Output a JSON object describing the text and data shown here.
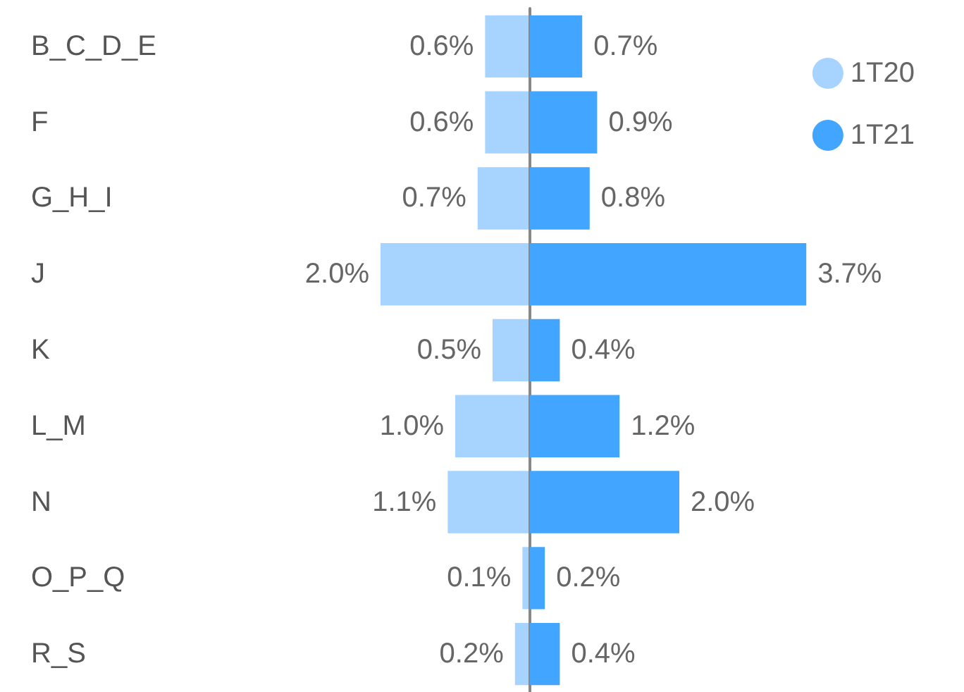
{
  "chart_data": [
    {
      "type": "bar",
      "orientation": "horizontal",
      "legend": "top right",
      "grid": false,
      "tick_labels": "y",
      "xlim": [
        2.0,
        0
      ],
      "categories": [
        "B_C_D_E",
        "F",
        "G_H_I",
        "J",
        "K",
        "L_M",
        "N",
        "O_P_Q",
        "R_S"
      ],
      "series": [
        {
          "name": "1T20",
          "color": "#a6d3ff",
          "values": [
            0.6,
            0.6,
            0.7,
            2.0,
            0.5,
            1.0,
            1.1,
            0.1,
            0.2
          ],
          "value_labels": [
            "0.6%",
            "0.6%",
            "0.7%",
            "2.0%",
            "0.5%",
            "1.0%",
            "1.1%",
            "0.1%",
            "0.2%"
          ]
        }
      ]
    },
    {
      "type": "bar",
      "orientation": "horizontal",
      "legend": "top right",
      "grid": false,
      "tick_labels": false,
      "xlim": [
        0,
        3.7
      ],
      "categories": [
        null,
        null,
        null,
        null,
        null,
        null,
        null,
        null,
        null
      ],
      "series": [
        {
          "name": "1T21",
          "color": "#42a5ff",
          "values": [
            0.7,
            0.9,
            0.8,
            3.7,
            0.4,
            1.2,
            2.0,
            0.2,
            0.4
          ],
          "value_labels": [
            "0.7%",
            "0.9%",
            "0.8%",
            "3.7%",
            "0.4%",
            "1.2%",
            "2.0%",
            "0.2%",
            "0.4%"
          ]
        }
      ]
    }
  ]
}
